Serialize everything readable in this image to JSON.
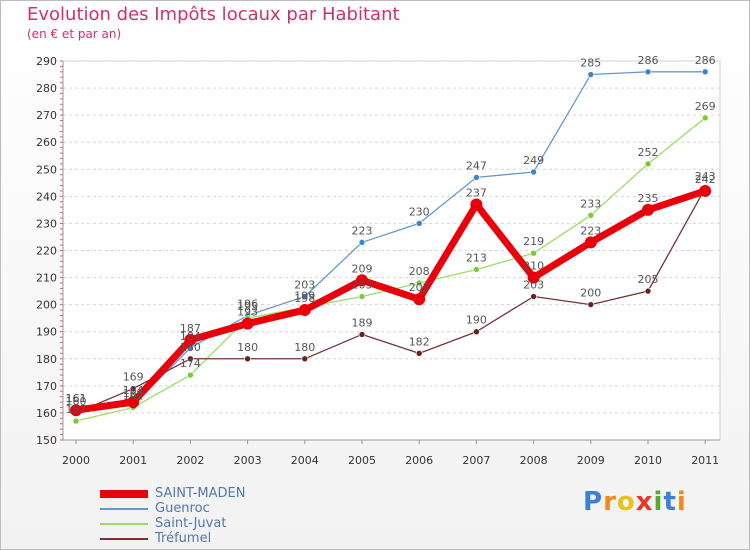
{
  "header": {
    "title": "Evolution des Impôts locaux par Habitant",
    "subtitle": "(en € et par an)"
  },
  "logo": {
    "letters": [
      "P",
      "r",
      "o",
      "x",
      "i",
      "t",
      "i"
    ]
  },
  "chart_data": {
    "type": "line",
    "title": "Evolution des Impôts locaux par Habitant",
    "subtitle": "(en € et par an)",
    "xlabel": "",
    "ylabel": "",
    "x": [
      "2000",
      "2001",
      "2002",
      "2003",
      "2004",
      "2005",
      "2006",
      "2007",
      "2008",
      "2009",
      "2010",
      "2011"
    ],
    "ylim": [
      150,
      290
    ],
    "yticks": [
      "150",
      "160",
      "170",
      "180",
      "190",
      "200",
      "210",
      "220",
      "230",
      "240",
      "250",
      "260",
      "270",
      "280",
      "290"
    ],
    "grid": "horizontal",
    "legend_position": "bottom-left",
    "series": [
      {
        "name": "SAINT-MADEN",
        "color": "#e8000b",
        "marker_color": "#e8000b",
        "emphasis": true,
        "values": [
          161,
          164,
          187,
          193,
          198,
          209,
          202,
          237,
          210,
          223,
          235,
          242
        ],
        "labels": [
          "161",
          "164",
          "187",
          "193",
          "198",
          "209",
          "202",
          "237",
          "210",
          "223",
          "235",
          "242"
        ]
      },
      {
        "name": "Guenroc",
        "color": "#6699cc",
        "marker_color": "#3d85c6",
        "emphasis": false,
        "values": [
          161,
          163,
          184,
          196,
          203,
          223,
          230,
          247,
          249,
          285,
          286,
          286
        ],
        "labels": [
          "161",
          "163",
          "184",
          "196",
          "203",
          "223",
          "230",
          "247",
          "249",
          "285",
          "286",
          "286"
        ]
      },
      {
        "name": "Saint-Juvat",
        "color": "#99dd66",
        "marker_color": "#77cc33",
        "emphasis": false,
        "values": [
          157,
          162,
          174,
          195,
          199,
          203,
          208,
          213,
          219,
          233,
          252,
          269
        ],
        "labels": [
          "157",
          "162",
          "174",
          "195",
          "199",
          "203",
          "208",
          "213",
          "219",
          "233",
          "252",
          "269"
        ]
      },
      {
        "name": "Tréfumel",
        "color": "#773333",
        "marker_color": "#662222",
        "emphasis": false,
        "values": [
          160,
          169,
          180,
          180,
          180,
          189,
          182,
          190,
          203,
          200,
          205,
          243
        ],
        "labels": [
          "160",
          "169",
          "180",
          "180",
          "180",
          "189",
          "182",
          "190",
          "203",
          "200",
          "205",
          "243"
        ]
      }
    ]
  }
}
